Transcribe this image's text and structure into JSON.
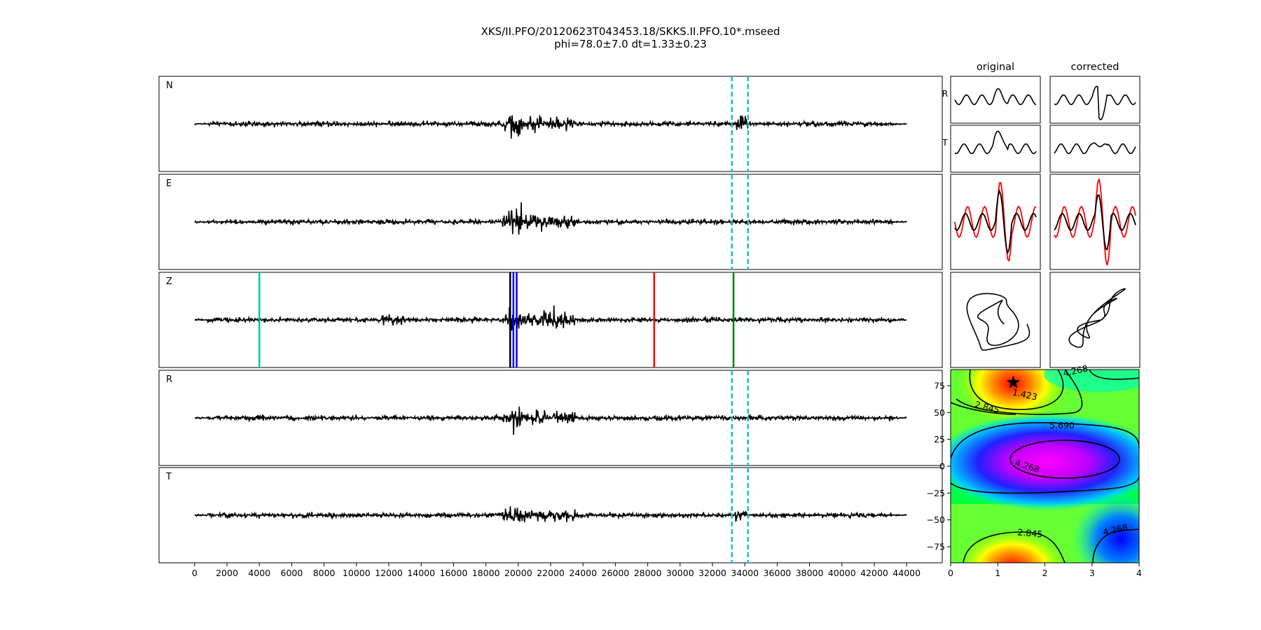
{
  "figure": {
    "title_line1": "XKS/II.PFO/20120623T043453.18/SKKS.II.PFO.10*.mseed",
    "title_line2": "phi=78.0±7.0 dt=1.33±0.23"
  },
  "chart_data": [
    {
      "type": "line",
      "panels": [
        {
          "label": "N"
        },
        {
          "label": "E"
        },
        {
          "label": "Z"
        },
        {
          "label": "R"
        },
        {
          "label": "T"
        }
      ],
      "x_ticks": [
        "0",
        "2000",
        "4000",
        "6000",
        "8000",
        "10000",
        "12000",
        "14000",
        "16000",
        "18000",
        "20000",
        "22000",
        "24000",
        "26000",
        "28000",
        "30000",
        "32000",
        "34000",
        "36000",
        "38000",
        "40000",
        "42000",
        "44000"
      ],
      "xlim": [
        -2200,
        46200
      ],
      "trace_x_range": [
        0,
        44000
      ],
      "window_markers": {
        "x": [
          33200,
          34200
        ],
        "panels": [
          "N",
          "E",
          "R",
          "T"
        ],
        "style": "dashed",
        "color": "#17becf"
      },
      "phase_markers": [
        {
          "x": 4000,
          "color": "#00bfbf"
        },
        {
          "x": 19500,
          "color": "#000000"
        },
        {
          "x": 19700,
          "color": "#0000ff"
        },
        {
          "x": 19900,
          "color": "#0000ff"
        },
        {
          "x": 28400,
          "color": "#ff0000"
        },
        {
          "x": 33300,
          "color": "#008000"
        }
      ],
      "grid": false
    },
    {
      "type": "line",
      "columns": [
        "original",
        "corrected"
      ],
      "rows": [
        "R",
        "T"
      ],
      "overlay_colors": [
        "#000000",
        "#ff0000"
      ]
    },
    {
      "type": "heatmap",
      "xlim": [
        0,
        4
      ],
      "ylim": [
        -90,
        90
      ],
      "x_ticks": [
        "0",
        "1",
        "2",
        "3",
        "4"
      ],
      "y_ticks": [
        "75",
        "50",
        "25",
        "0",
        "−25",
        "−50",
        "−75"
      ],
      "contour_labels": [
        "1.423",
        "2.845",
        "4.268",
        "5.690",
        "4.268",
        "2.845",
        "4.268"
      ],
      "best_fit": {
        "dt": 1.33,
        "phi": 78.0,
        "marker": "star-icon"
      },
      "colormap": "hsv"
    }
  ]
}
